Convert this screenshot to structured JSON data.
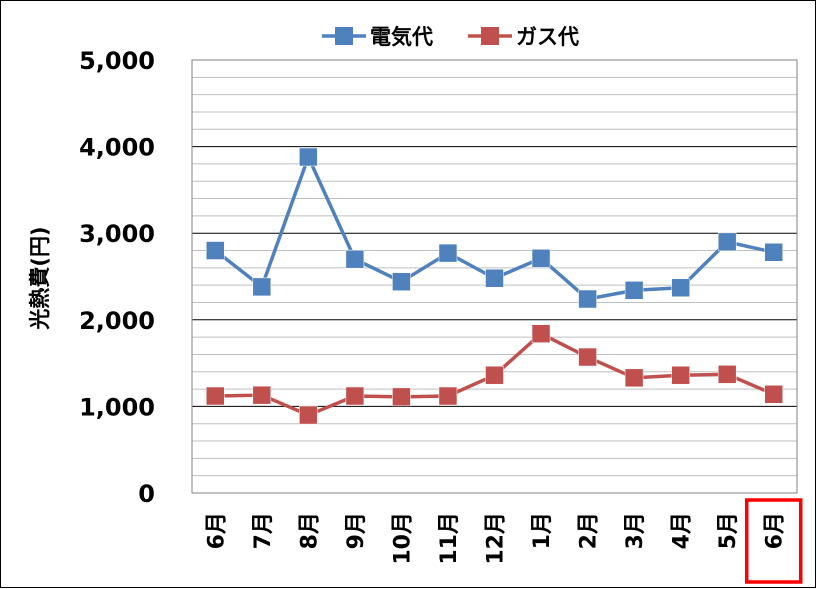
{
  "chart_data": {
    "type": "line",
    "categories": [
      "6月",
      "7月",
      "8月",
      "9月",
      "10月",
      "11月",
      "12月",
      "1月",
      "2月",
      "3月",
      "4月",
      "5月",
      "6月"
    ],
    "series": [
      {
        "name": "電気代",
        "color": "#4f81bd",
        "values": [
          2800,
          2380,
          3880,
          2700,
          2440,
          2770,
          2480,
          2710,
          2240,
          2340,
          2370,
          2900,
          2780
        ]
      },
      {
        "name": "ガス代",
        "color": "#c0504d",
        "values": [
          1120,
          1130,
          900,
          1120,
          1110,
          1120,
          1360,
          1840,
          1570,
          1330,
          1360,
          1370,
          1140
        ]
      }
    ],
    "ylabel": "光熱費(円)",
    "xlabel": "",
    "ylim": [
      0,
      5000
    ],
    "yticks": [
      "0",
      "1,000",
      "2,000",
      "3,000",
      "4,000",
      "5,000"
    ],
    "ytick_values": [
      0,
      1000,
      2000,
      3000,
      4000,
      5000
    ],
    "minor_grid_step": 200,
    "grid": true,
    "legend_position": "top",
    "highlighted_category_index": 12,
    "highlight_color": "#ff0000"
  }
}
